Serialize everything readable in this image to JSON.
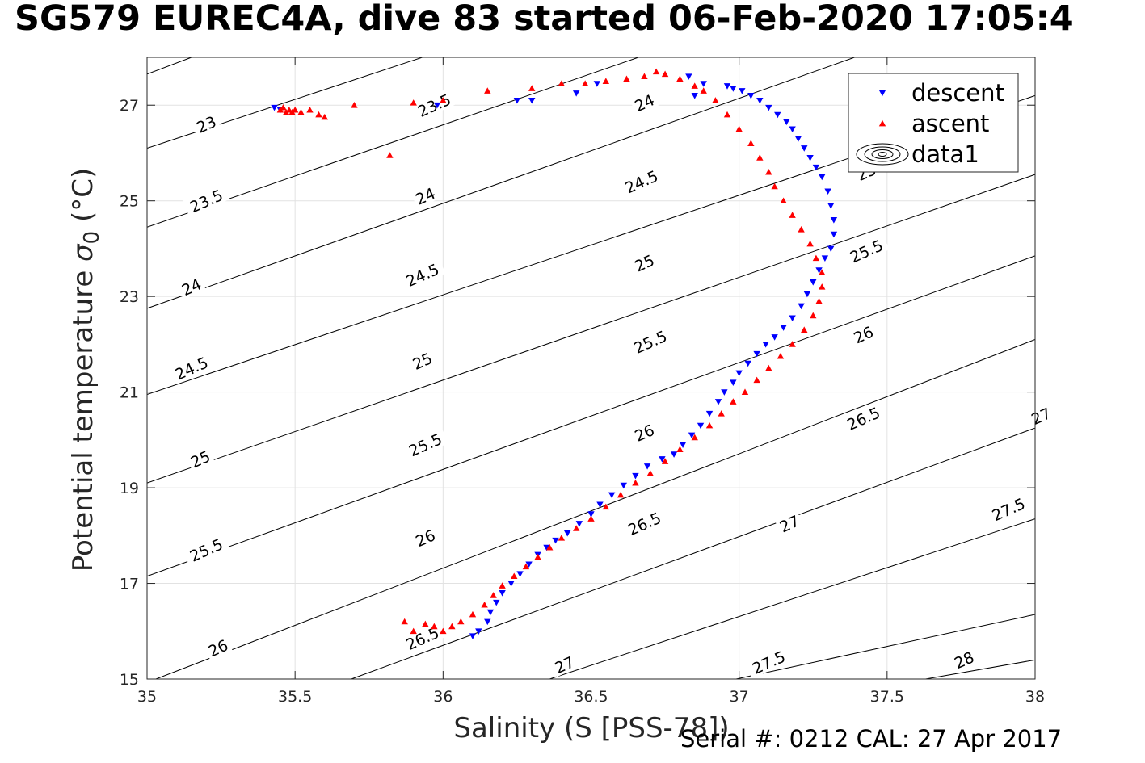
{
  "title": "SG579 EUREC4A, dive 83 started 06-Feb-2020 17:05:4",
  "footer": "Serial #: 0212  CAL: 27 Apr 2017",
  "chart_data": {
    "type": "scatter",
    "xlabel": "Salinity (S [PSS-78])",
    "ylabel_main": "Potential temperature ",
    "ylabel_sigma": "σ",
    "ylabel_sub": "0",
    "ylabel_unit": " (°C)",
    "xlim": [
      35,
      38
    ],
    "ylim": [
      15,
      28
    ],
    "x_ticks": [
      "35",
      "35.5",
      "36",
      "36.5",
      "37",
      "37.5",
      "38"
    ],
    "y_ticks": [
      "15",
      "17",
      "19",
      "21",
      "23",
      "25",
      "27"
    ],
    "grid": true,
    "legend_position": "top-right",
    "legend": [
      "descent",
      "ascent",
      "data1"
    ],
    "colors": {
      "descent": "#0000ff",
      "ascent": "#ff0000",
      "contour": "#000000",
      "grid": "#e2e2e2"
    },
    "contour_lines": [
      {
        "start": [
          35,
          27.65
        ],
        "end": [
          35.15,
          28.0
        ]
      },
      {
        "start": [
          35,
          26.1
        ],
        "end": [
          35.93,
          28.0
        ]
      },
      {
        "start": [
          35,
          24.45
        ],
        "end": [
          36.66,
          28.0
        ]
      },
      {
        "start": [
          35,
          22.75
        ],
        "end": [
          37.39,
          28.0
        ]
      },
      {
        "start": [
          35,
          20.95
        ],
        "end": [
          38,
          27.2
        ]
      },
      {
        "start": [
          35,
          19.1
        ],
        "end": [
          38,
          25.55
        ]
      },
      {
        "start": [
          35,
          17.15
        ],
        "end": [
          38,
          23.85
        ]
      },
      {
        "start": [
          35.03,
          15.0
        ],
        "end": [
          38,
          22.1
        ]
      },
      {
        "start": [
          35.69,
          15.0
        ],
        "end": [
          38,
          20.25
        ]
      },
      {
        "start": [
          36.36,
          15.0
        ],
        "end": [
          38,
          18.35
        ]
      },
      {
        "start": [
          36.99,
          15.0
        ],
        "end": [
          38,
          16.35
        ]
      },
      {
        "start": [
          37.63,
          15.0
        ],
        "end": [
          38,
          15.4
        ]
      }
    ],
    "contour_labels": [
      {
        "text": "23",
        "x": 35.2,
        "y": 26.6
      },
      {
        "text": "23.5",
        "x": 35.97,
        "y": 27.0
      },
      {
        "text": "24",
        "x": 36.68,
        "y": 27.05
      },
      {
        "text": "23.5",
        "x": 35.2,
        "y": 25.0
      },
      {
        "text": "24",
        "x": 35.94,
        "y": 25.1
      },
      {
        "text": "24.5",
        "x": 36.67,
        "y": 25.4
      },
      {
        "text": "25",
        "x": 37.43,
        "y": 25.6
      },
      {
        "text": "24",
        "x": 35.15,
        "y": 23.2
      },
      {
        "text": "24.5",
        "x": 35.93,
        "y": 23.45
      },
      {
        "text": "25",
        "x": 36.68,
        "y": 23.7
      },
      {
        "text": "25.5",
        "x": 37.43,
        "y": 23.95
      },
      {
        "text": "24.5",
        "x": 35.15,
        "y": 21.5
      },
      {
        "text": "25",
        "x": 35.93,
        "y": 21.65
      },
      {
        "text": "25.5",
        "x": 36.7,
        "y": 22.05
      },
      {
        "text": "26",
        "x": 37.42,
        "y": 22.2
      },
      {
        "text": "25",
        "x": 35.18,
        "y": 19.6
      },
      {
        "text": "25.5",
        "x": 35.94,
        "y": 19.9
      },
      {
        "text": "26",
        "x": 36.68,
        "y": 20.15
      },
      {
        "text": "26.5",
        "x": 37.42,
        "y": 20.45
      },
      {
        "text": "27",
        "x": 38.02,
        "y": 20.5
      },
      {
        "text": "25.5",
        "x": 35.2,
        "y": 17.7
      },
      {
        "text": "26",
        "x": 35.94,
        "y": 17.95
      },
      {
        "text": "26.5",
        "x": 36.68,
        "y": 18.25
      },
      {
        "text": "27",
        "x": 37.17,
        "y": 18.25
      },
      {
        "text": "27.5",
        "x": 37.91,
        "y": 18.55
      },
      {
        "text": "26",
        "x": 35.24,
        "y": 15.65
      },
      {
        "text": "26.5",
        "x": 35.93,
        "y": 15.85
      },
      {
        "text": "27",
        "x": 36.41,
        "y": 15.3
      },
      {
        "text": "27.5",
        "x": 37.1,
        "y": 15.35
      },
      {
        "text": "28",
        "x": 37.76,
        "y": 15.4
      }
    ],
    "series": [
      {
        "name": "descent",
        "marker": "triangle-down",
        "x": [
          36.1,
          36.12,
          36.15,
          36.16,
          36.18,
          36.2,
          36.23,
          36.26,
          36.29,
          36.32,
          36.35,
          36.38,
          36.42,
          36.46,
          36.5,
          36.53,
          36.57,
          36.61,
          36.65,
          36.69,
          36.74,
          36.78,
          36.81,
          36.84,
          36.87,
          36.9,
          36.93,
          36.95,
          36.98,
          37.0,
          37.03,
          37.06,
          37.09,
          37.12,
          37.15,
          37.18,
          37.21,
          37.23,
          37.25,
          37.27,
          37.29,
          37.31,
          37.32,
          37.32,
          37.31,
          37.3,
          37.28,
          37.26,
          37.24,
          37.22,
          37.2,
          37.18,
          37.16,
          37.13,
          37.1,
          37.07,
          37.04,
          37.01,
          36.98,
          36.96,
          36.88,
          36.83,
          36.85,
          36.52,
          36.45,
          36.3,
          36.25,
          35.98,
          35.45,
          35.43
        ],
        "y": [
          15.9,
          16.0,
          16.2,
          16.4,
          16.6,
          16.8,
          17.0,
          17.2,
          17.4,
          17.6,
          17.75,
          17.9,
          18.05,
          18.25,
          18.45,
          18.65,
          18.85,
          19.05,
          19.25,
          19.45,
          19.6,
          19.7,
          19.9,
          20.1,
          20.3,
          20.55,
          20.8,
          21.0,
          21.2,
          21.4,
          21.6,
          21.8,
          22.0,
          22.15,
          22.35,
          22.55,
          22.8,
          23.05,
          23.3,
          23.55,
          23.8,
          24.0,
          24.3,
          24.6,
          24.9,
          25.2,
          25.5,
          25.7,
          25.9,
          26.1,
          26.3,
          26.5,
          26.65,
          26.8,
          26.95,
          27.1,
          27.2,
          27.3,
          27.35,
          27.4,
          27.45,
          27.6,
          27.2,
          27.45,
          27.25,
          27.1,
          27.1,
          27.0,
          26.9,
          26.95
        ]
      },
      {
        "name": "ascent",
        "marker": "triangle-up",
        "x": [
          35.45,
          35.46,
          35.47,
          35.48,
          35.49,
          35.5,
          35.52,
          35.55,
          35.58,
          35.6,
          35.7,
          35.82,
          35.87,
          35.9,
          35.94,
          35.97,
          36.0,
          36.03,
          36.06,
          36.1,
          36.14,
          36.17,
          36.2,
          36.24,
          36.28,
          36.32,
          36.36,
          36.4,
          36.45,
          36.5,
          36.55,
          36.6,
          36.65,
          36.7,
          36.75,
          36.8,
          36.85,
          36.9,
          36.94,
          36.98,
          37.02,
          37.06,
          37.1,
          37.14,
          37.18,
          37.22,
          37.25,
          37.27,
          37.28,
          37.28,
          37.26,
          37.24,
          37.21,
          37.18,
          37.15,
          37.12,
          37.1,
          37.07,
          37.04,
          37.0,
          36.96,
          36.92,
          36.88,
          36.85,
          36.8,
          36.75,
          36.72,
          36.68,
          36.62,
          36.55,
          36.48,
          36.4,
          36.3,
          36.15,
          36.0,
          35.9
        ],
        "y": [
          26.9,
          26.95,
          26.85,
          26.9,
          26.85,
          26.9,
          26.85,
          26.9,
          26.8,
          26.75,
          27.0,
          25.95,
          16.2,
          27.05,
          16.15,
          16.1,
          16.0,
          16.1,
          16.2,
          16.35,
          16.55,
          16.75,
          16.95,
          17.15,
          17.35,
          17.55,
          17.75,
          17.95,
          18.15,
          18.35,
          18.6,
          18.85,
          19.1,
          19.3,
          19.55,
          19.8,
          20.05,
          20.3,
          20.55,
          20.8,
          21.0,
          21.25,
          21.5,
          21.75,
          22.0,
          22.3,
          22.6,
          22.9,
          23.2,
          23.5,
          23.8,
          24.1,
          24.4,
          24.7,
          25.0,
          25.3,
          25.6,
          25.9,
          26.2,
          26.5,
          26.8,
          27.1,
          27.3,
          27.4,
          27.55,
          27.65,
          27.7,
          27.6,
          27.55,
          27.5,
          27.45,
          27.45,
          27.35,
          27.3,
          27.1,
          16.0
        ]
      }
    ]
  }
}
